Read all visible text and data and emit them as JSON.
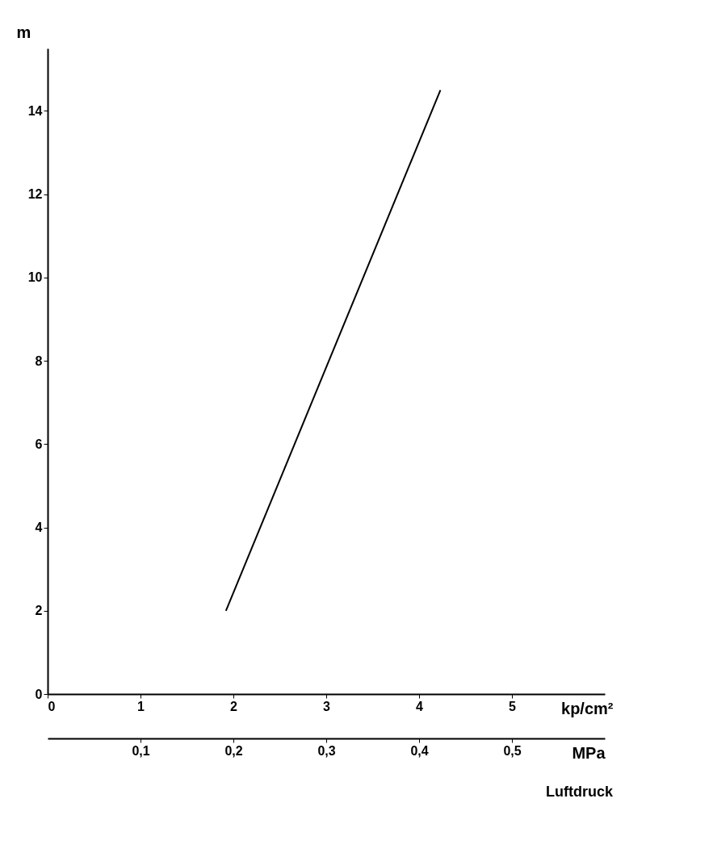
{
  "chart_data": {
    "type": "line",
    "ylabel": "m",
    "xlabel": "kp/cm²",
    "x2label": "MPa",
    "annotations": [
      "Luftdruck"
    ],
    "series": [
      {
        "color": "#000000",
        "x": [
          1.92,
          4.23
        ],
        "values": [
          2,
          14.5
        ]
      }
    ],
    "xlim": [
      0,
      6
    ],
    "xticks": [
      0,
      1,
      2,
      3,
      4,
      5
    ],
    "ylim": [
      0,
      15.5
    ],
    "yticks": [
      0,
      2,
      4,
      6,
      8,
      10,
      12,
      14
    ],
    "x2lim": [
      0,
      0.6
    ],
    "x2ticks": [
      {
        "value": 0.1,
        "label": "0,1"
      },
      {
        "value": 0.2,
        "label": "0,2"
      },
      {
        "value": 0.3,
        "label": "0,3"
      },
      {
        "value": 0.4,
        "label": "0,4"
      },
      {
        "value": 0.5,
        "label": "0,5"
      }
    ],
    "grid": false,
    "legend": false,
    "marker": "none",
    "line_style": "solid"
  }
}
